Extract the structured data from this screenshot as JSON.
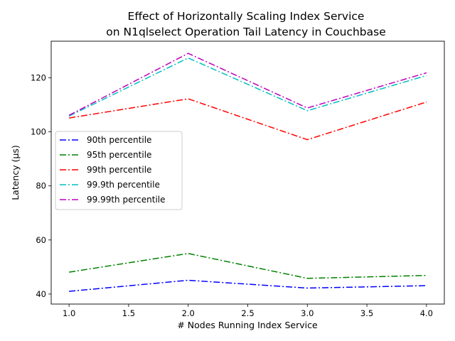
{
  "chart_data": {
    "type": "line",
    "title": [
      "Effect of Horizontally Scaling Index Service",
      "on N1qlselect Operation Tail Latency in Couchbase"
    ],
    "xlabel": "# Nodes Running Index Service",
    "ylabel": "Latency (µs)",
    "x": [
      1.0,
      2.0,
      3.0,
      4.0
    ],
    "xlim": [
      0.85,
      4.15
    ],
    "ylim": [
      36.3,
      133.5
    ],
    "xticks": [
      1.0,
      1.5,
      2.0,
      2.5,
      3.0,
      3.5,
      4.0
    ],
    "xtick_labels": [
      "1.0",
      "1.5",
      "2.0",
      "2.5",
      "3.0",
      "3.5",
      "4.0"
    ],
    "yticks": [
      40,
      60,
      80,
      100,
      120
    ],
    "ytick_labels": [
      "40",
      "60",
      "80",
      "100",
      "120"
    ],
    "grid": false,
    "legend_position": "center-left",
    "line_style": "dash-dot",
    "series": [
      {
        "name": "90th percentile",
        "color": "#0000ff",
        "values": [
          41.0,
          45.1,
          42.2,
          43.1
        ]
      },
      {
        "name": "95th percentile",
        "color": "#008000",
        "values": [
          48.1,
          55.0,
          45.8,
          46.9
        ]
      },
      {
        "name": "99th percentile",
        "color": "#ff0000",
        "values": [
          105.1,
          112.2,
          97.1,
          111.0
        ]
      },
      {
        "name": "99.9th percentile",
        "color": "#00bfbf",
        "values": [
          105.8,
          127.3,
          107.8,
          120.8
        ]
      },
      {
        "name": "99.99th percentile",
        "color": "#bf00bf",
        "values": [
          106.1,
          129.0,
          108.8,
          121.8
        ]
      }
    ]
  }
}
